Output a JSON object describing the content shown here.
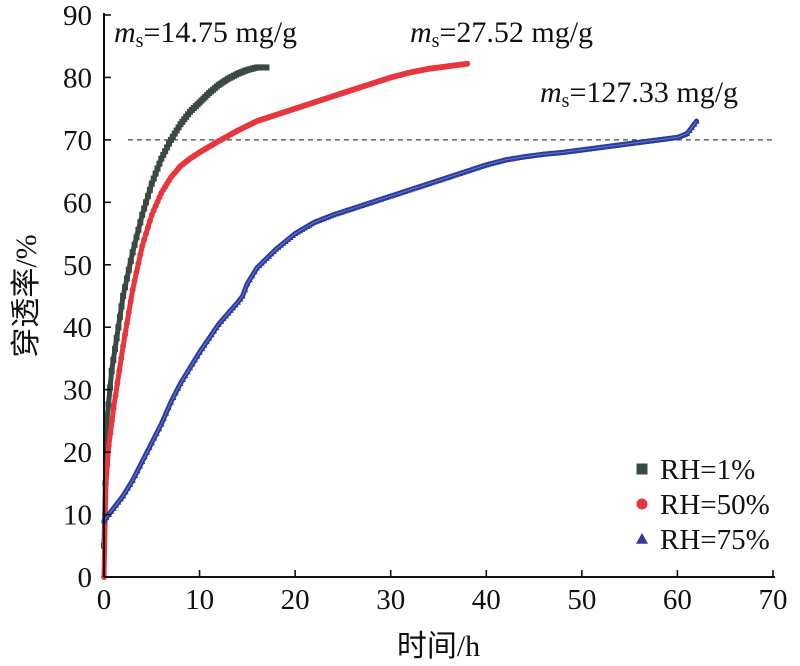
{
  "chart_data": {
    "type": "line",
    "xlabel": "时间/h",
    "ylabel": "穿透率/%",
    "xlim": [
      0,
      70
    ],
    "ylim": [
      0,
      90
    ],
    "xticks": [
      "0",
      "10",
      "20",
      "30",
      "40",
      "50",
      "60",
      "70"
    ],
    "yticks": [
      "0",
      "10",
      "20",
      "30",
      "40",
      "50",
      "60",
      "70",
      "80",
      "90"
    ],
    "reference_line": {
      "y": 70,
      "style": "dashed"
    },
    "legend_position": "bottom-right",
    "annotations": [
      {
        "symbol": "m",
        "subscript": "s",
        "text": "=14.75 mg/g",
        "series": "RH=1%"
      },
      {
        "symbol": "m",
        "subscript": "s",
        "text": "=27.52 mg/g",
        "series": "RH=50%"
      },
      {
        "symbol": "m",
        "subscript": "s",
        "text": "=127.33 mg/g",
        "series": "RH=75%"
      }
    ],
    "series": [
      {
        "name": "RH=1%",
        "color": "#3a4a40",
        "marker": "square",
        "x": [
          0,
          0.3,
          0.8,
          1.5,
          2,
          3,
          4,
          5,
          6,
          7,
          8,
          9,
          10,
          11,
          12,
          13,
          14,
          15,
          16,
          17
        ],
        "y": [
          5,
          25,
          33,
          40,
          45,
          52,
          58,
          63,
          67,
          70,
          72.5,
          74.5,
          76,
          77.5,
          78.8,
          79.8,
          80.6,
          81.2,
          81.6,
          81.6
        ]
      },
      {
        "name": "RH=50%",
        "color": "#e8363e",
        "marker": "circle",
        "x": [
          0,
          0.2,
          0.5,
          1,
          2,
          3,
          4,
          5,
          6,
          7,
          8,
          9,
          10,
          12,
          14,
          16,
          18,
          20,
          22,
          24,
          26,
          28,
          30,
          32,
          34,
          36,
          38
        ],
        "y": [
          0,
          15,
          21,
          27,
          37,
          46,
          53,
          58,
          61.5,
          64,
          65.8,
          67,
          68,
          69.8,
          71.5,
          73,
          74,
          75,
          76,
          77,
          78,
          79,
          80,
          80.8,
          81.4,
          81.8,
          82.2
        ]
      },
      {
        "name": "RH=75%",
        "color": "#2f3a9b",
        "marker": "triangle",
        "x": [
          0,
          1,
          2,
          3,
          4,
          5,
          6,
          7,
          8,
          10,
          12,
          14,
          14.5,
          15,
          16,
          18,
          20,
          22,
          24,
          26,
          28,
          30,
          32,
          34,
          36,
          38,
          40,
          42,
          44,
          46,
          48,
          50,
          52,
          54,
          56,
          58,
          60,
          61,
          61.5,
          62
        ],
        "y": [
          9,
          11,
          13,
          15.5,
          18.5,
          21.5,
          24.5,
          28,
          31,
          36,
          40.5,
          44,
          45,
          47,
          49.5,
          52.5,
          55,
          56.8,
          58,
          59,
          60,
          61,
          62,
          63,
          64,
          65,
          66,
          66.8,
          67.3,
          67.7,
          68,
          68.4,
          68.8,
          69.2,
          69.6,
          70,
          70.4,
          71,
          72,
          73
        ]
      }
    ]
  }
}
